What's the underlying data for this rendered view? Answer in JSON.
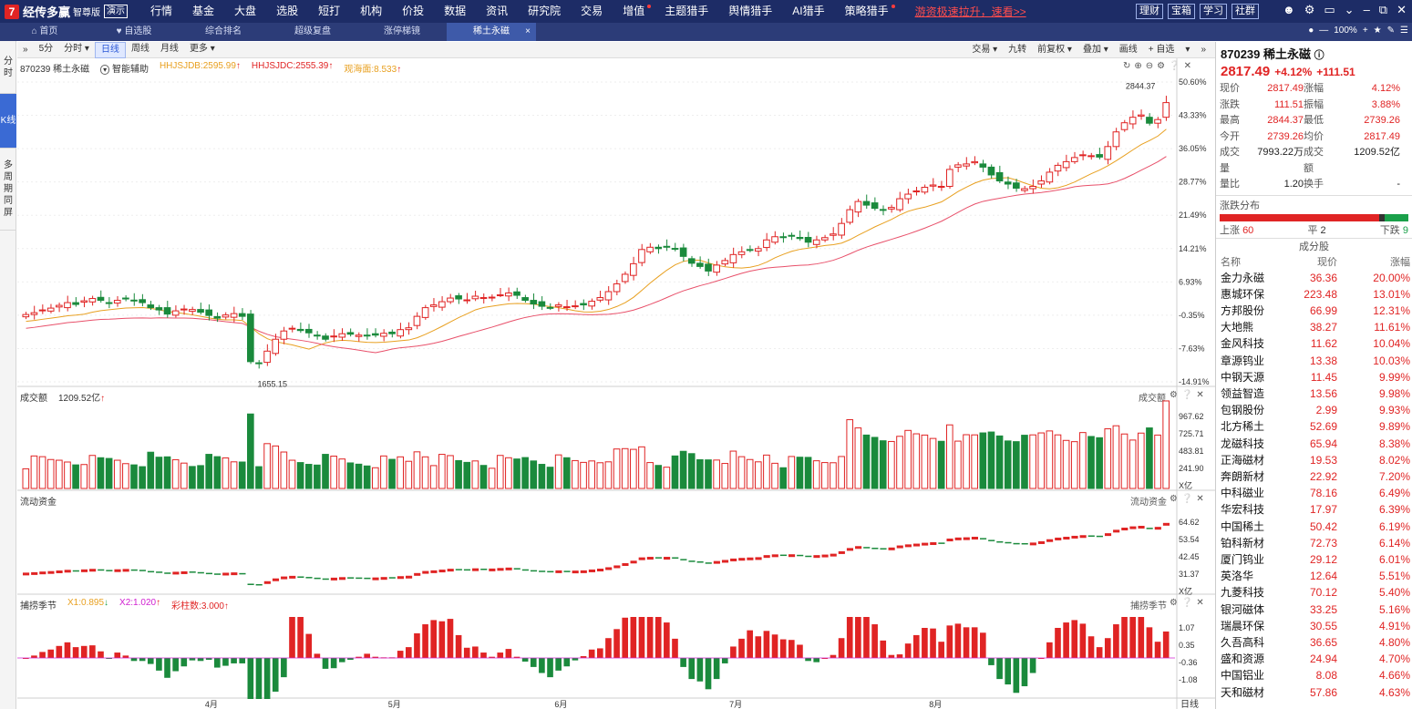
{
  "app": {
    "logo_glyph": "7",
    "name": "经传多赢",
    "edition": "智尊版",
    "demo_badge": "演示"
  },
  "menu": [
    "行情",
    "基金",
    "大盘",
    "选股",
    "短打",
    "机构",
    "价投",
    "数据",
    "资讯",
    "研究院",
    "交易",
    "增值",
    "主题猎手",
    "舆情猎手",
    "AI猎手",
    "策略猎手"
  ],
  "menu_dots": [
    "增值",
    "策略猎手"
  ],
  "promo": "游资极速拉升，速看>>",
  "top_buttons": [
    "理财",
    "宝箱",
    "学习",
    "社群"
  ],
  "window_icons": [
    "user-icon",
    "gear-icon",
    "window-icon",
    "dropdown-icon",
    "minimize-icon",
    "restore-icon",
    "close-icon"
  ],
  "tabs": [
    {
      "label": "首页",
      "icon": "home-icon"
    },
    {
      "label": "自选股",
      "icon": "heart-icon"
    },
    {
      "label": "综合排名"
    },
    {
      "label": "超级复盘"
    },
    {
      "label": "涨停梯镜"
    },
    {
      "label": "稀土永磁",
      "active": true,
      "closable": true
    }
  ],
  "zoom": "100%",
  "left_rail": [
    {
      "label": "分时"
    },
    {
      "label": "K线",
      "active": true
    },
    {
      "label": "多周期同屏"
    }
  ],
  "toolbar": {
    "collapse": "»",
    "periods": [
      "5分",
      "分时 ▾",
      "日线",
      "周线",
      "月线",
      "更多 ▾"
    ],
    "active_period": "日线",
    "right": [
      "交易 ▾",
      "九转",
      "前复权 ▾",
      "叠加 ▾",
      "画线",
      "+ 自选",
      "▾",
      "»"
    ]
  },
  "main_legend": {
    "code_name": "870239 稀土永磁",
    "assist": "智能辅助",
    "ma1": "HHJSJDB:2595.99",
    "ma2": "HHJSJDC:2555.39",
    "ma3": "观海面:8.533"
  },
  "volume_legend": {
    "label": "成交额",
    "value": "1209.52亿",
    "right": "成交额"
  },
  "flow_legend": {
    "label": "流动资金",
    "right": "流动资金"
  },
  "season_legend": {
    "label": "捕捞季节",
    "x1": "X1:0.895",
    "x2": "X2:1.020",
    "bars": "彩柱数:3.000",
    "right": "捕捞季节"
  },
  "axis_labels": {
    "price": [
      "50.60%",
      "43.33%",
      "36.05%",
      "28.77%",
      "21.49%",
      "14.21%",
      "6.93%",
      "-0.35%",
      "-7.63%",
      "-14.91%"
    ],
    "volume": [
      "967.62",
      "725.71",
      "483.81",
      "241.90",
      "X亿"
    ],
    "flow": [
      "64.62",
      "53.54",
      "42.45",
      "31.37",
      "X亿"
    ],
    "season": [
      "1.07",
      "0.35",
      "-0.36",
      "-1.08"
    ],
    "months": [
      "4月",
      "5月",
      "6月",
      "7月",
      "8月"
    ],
    "period_label": "日线",
    "high_label": "2844.37",
    "low_label": "1655.15"
  },
  "quote": {
    "code": "870239",
    "name": "稀土永磁",
    "price": "2817.49",
    "change_pct": "+4.12%",
    "change": "+111.51",
    "fields": [
      [
        "现价",
        "2817.49",
        "涨幅",
        "4.12%"
      ],
      [
        "涨跌",
        "111.51",
        "振幅",
        "3.88%"
      ],
      [
        "最高",
        "2844.37",
        "最低",
        "2739.26"
      ],
      [
        "今开",
        "2739.26",
        "均价",
        "2817.49"
      ],
      [
        "成交量",
        "7993.22万",
        "成交额",
        "1209.52亿"
      ],
      [
        "量比",
        "1.20",
        "换手",
        "-"
      ]
    ],
    "dist_title": "涨跌分布",
    "dist": {
      "up_label": "上涨",
      "up": 60,
      "flat_label": "平",
      "flat": 2,
      "down_label": "下跌",
      "down": 9
    }
  },
  "components": {
    "title": "成分股",
    "headers": [
      "名称",
      "现价",
      "涨幅"
    ],
    "rows": [
      [
        "金力永磁",
        "36.36",
        "20.00%"
      ],
      [
        "惠城环保",
        "223.48",
        "13.01%"
      ],
      [
        "方邦股份",
        "66.99",
        "12.31%"
      ],
      [
        "大地熊",
        "38.27",
        "11.61%"
      ],
      [
        "金风科技",
        "11.62",
        "10.04%"
      ],
      [
        "章源钨业",
        "13.38",
        "10.03%"
      ],
      [
        "中钢天源",
        "11.45",
        "9.99%"
      ],
      [
        "领益智造",
        "13.56",
        "9.98%"
      ],
      [
        "包钢股份",
        "2.99",
        "9.93%"
      ],
      [
        "北方稀土",
        "52.69",
        "9.89%"
      ],
      [
        "龙磁科技",
        "65.94",
        "8.38%"
      ],
      [
        "正海磁材",
        "19.53",
        "8.02%"
      ],
      [
        "奔朗新材",
        "22.92",
        "7.20%"
      ],
      [
        "中科磁业",
        "78.16",
        "6.49%"
      ],
      [
        "华宏科技",
        "17.97",
        "6.39%"
      ],
      [
        "中国稀土",
        "50.42",
        "6.19%"
      ],
      [
        "铂科新材",
        "72.73",
        "6.14%"
      ],
      [
        "厦门钨业",
        "29.12",
        "6.01%"
      ],
      [
        "英洛华",
        "12.64",
        "5.51%"
      ],
      [
        "九菱科技",
        "70.12",
        "5.40%"
      ],
      [
        "银河磁体",
        "33.25",
        "5.16%"
      ],
      [
        "瑞晨环保",
        "30.55",
        "4.91%"
      ],
      [
        "久吾高科",
        "36.65",
        "4.80%"
      ],
      [
        "盛和资源",
        "24.94",
        "4.70%"
      ],
      [
        "中国铝业",
        "8.08",
        "4.66%"
      ],
      [
        "天和磁材",
        "57.86",
        "4.63%"
      ]
    ]
  },
  "chart_data": {
    "type": "candlestick",
    "note_axes": "price axis printed as percent change",
    "ylim_pct": [
      -14.91,
      50.6
    ],
    "close_pct": [
      -0.2,
      0.2,
      0.8,
      1.2,
      1.8,
      2.4,
      2.0,
      2.8,
      3.3,
      2.9,
      2.3,
      2.9,
      3.2,
      2.8,
      2.4,
      1.3,
      0.8,
      -0.1,
      0.6,
      1.0,
      0.9,
      0.3,
      -0.4,
      -1.0,
      -0.3,
      0.0,
      -0.6,
      -10.5,
      -10.9,
      -8.2,
      -5.6,
      -3.8,
      -3.2,
      -3.7,
      -4.2,
      -4.9,
      -5.6,
      -4.9,
      -4.4,
      -4.5,
      -4.7,
      -4.9,
      -4.7,
      -4.3,
      -4.4,
      -3.5,
      -3.1,
      -0.6,
      1.3,
      1.9,
      2.6,
      3.4,
      3.2,
      3.0,
      3.8,
      3.5,
      3.6,
      4.1,
      4.5,
      4.0,
      2.9,
      2.1,
      1.6,
      1.3,
      1.9,
      1.5,
      1.7,
      1.9,
      2.7,
      3.5,
      4.8,
      6.5,
      8.6,
      10.9,
      14.0,
      14.5,
      14.2,
      14.5,
      14.1,
      12.5,
      11.0,
      10.3,
      9.3,
      10.6,
      11.6,
      12.9,
      13.5,
      13.9,
      14.2,
      16.1,
      16.8,
      16.6,
      16.9,
      16.4,
      15.6,
      16.1,
      16.6,
      17.4,
      19.7,
      22.7,
      24.5,
      23.7,
      23.0,
      22.6,
      23.2,
      25.1,
      26.1,
      26.8,
      27.6,
      28.1,
      27.8,
      31.5,
      32.5,
      32.7,
      33.2,
      32.0,
      30.3,
      29.0,
      28.3,
      27.4,
      27.3,
      27.8,
      29.0,
      30.9,
      32.4,
      33.2,
      34.1,
      34.7,
      34.5,
      34.2,
      36.5,
      39.7,
      41.7,
      42.9,
      43.4,
      41.6,
      42.4,
      46.1
    ],
    "ma_series": [
      "HHJSJDB",
      "HHJSJDC"
    ],
    "volume_unit": "亿",
    "volume_range": [
      0,
      1209.52
    ],
    "flow_range": [
      20,
      70
    ],
    "season_range": [
      -1.6,
      1.6
    ]
  }
}
